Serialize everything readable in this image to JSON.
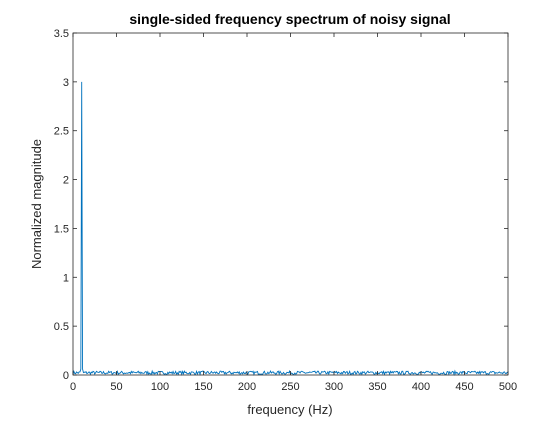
{
  "chart_data": {
    "type": "line",
    "title": "single-sided frequency spectrum of noisy signal",
    "xlabel": "frequency (Hz)",
    "ylabel": "Normalized magnitude",
    "xlim": [
      0,
      500
    ],
    "ylim": [
      0,
      3.5
    ],
    "xticks": [
      "0",
      "50",
      "100",
      "150",
      "200",
      "250",
      "300",
      "350",
      "400",
      "450",
      "500"
    ],
    "yticks": [
      "0",
      "0.5",
      "1",
      "1.5",
      "2",
      "2.5",
      "3",
      "3.5"
    ],
    "grid": false,
    "series": [
      {
        "color": "#0072BD",
        "peak": {
          "x": 10,
          "y": 3.0
        },
        "noise_floor_approx": 0.02
      }
    ]
  }
}
